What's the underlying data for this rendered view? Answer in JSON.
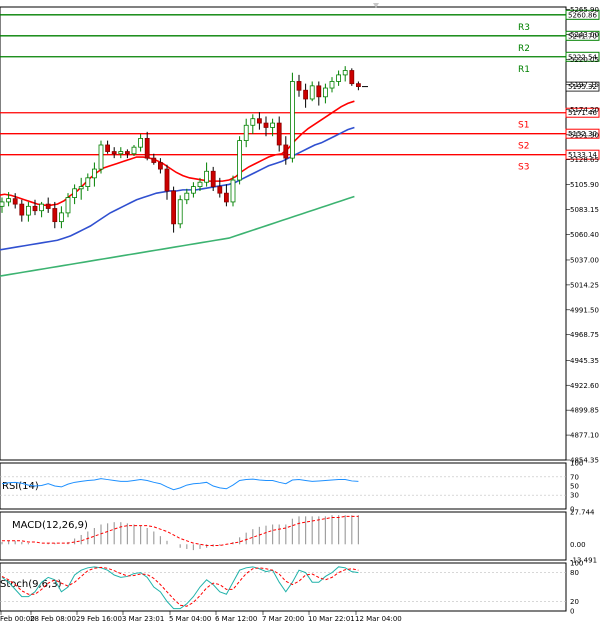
{
  "chart_data": {
    "type": "candlestick",
    "price_axis": {
      "ticks": [
        "5265.90",
        "5243.00",
        "5220.05",
        "5197.15",
        "5174.20",
        "5151.30",
        "5128.65",
        "5105.90",
        "5083.15",
        "5060.40",
        "5037.00",
        "5014.25",
        "4991.50",
        "4968.75",
        "4945.35",
        "4922.60",
        "4899.85",
        "4877.10",
        "4854.35"
      ],
      "range": [
        4854.35,
        5268
      ]
    },
    "x_labels": [
      "Feb 00:00",
      "28 Feb 08:00",
      "29 Feb 16:00",
      "3 Mar 23:01",
      "5 Mar 04:00",
      "6 Mar 12:00",
      "7 Mar 20:00",
      "10 Mar 22:01",
      "12 Mar 04:00"
    ],
    "levels": [
      {
        "name": "R3",
        "value": 5260.86,
        "label": "5260.86",
        "color": "#008000"
      },
      {
        "name": "R2",
        "value": 5241.7,
        "label": "5241.70",
        "color": "#008000"
      },
      {
        "name": "R1",
        "value": 5222.54,
        "label": "5222.54",
        "color": "#008000"
      },
      {
        "name": "S1",
        "value": 5171.46,
        "label": "5171.46",
        "color": "#ff0000"
      },
      {
        "name": "S2",
        "value": 5152.3,
        "label": "5152.30",
        "color": "#ff0000"
      },
      {
        "name": "S3",
        "value": 5133.14,
        "label": "5133.14",
        "color": "#ff0000"
      }
    ],
    "current_price": {
      "value": 5195.32,
      "label": "5195.32"
    },
    "candles": [
      [
        5086,
        5094,
        5080,
        5090
      ],
      [
        5090,
        5099,
        5086,
        5093
      ],
      [
        5093,
        5098,
        5084,
        5088
      ],
      [
        5088,
        5092,
        5072,
        5078
      ],
      [
        5078,
        5090,
        5072,
        5086
      ],
      [
        5086,
        5092,
        5078,
        5082
      ],
      [
        5082,
        5090,
        5076,
        5088
      ],
      [
        5088,
        5094,
        5080,
        5084
      ],
      [
        5084,
        5090,
        5066,
        5072
      ],
      [
        5072,
        5086,
        5066,
        5080
      ],
      [
        5080,
        5098,
        5076,
        5094
      ],
      [
        5094,
        5106,
        5088,
        5102
      ],
      [
        5102,
        5112,
        5092,
        5104
      ],
      [
        5104,
        5116,
        5100,
        5112
      ],
      [
        5112,
        5126,
        5104,
        5120
      ],
      [
        5120,
        5146,
        5116,
        5142
      ],
      [
        5142,
        5146,
        5134,
        5136
      ],
      [
        5136,
        5140,
        5130,
        5134
      ],
      [
        5134,
        5140,
        5130,
        5136
      ],
      [
        5136,
        5138,
        5130,
        5134
      ],
      [
        5134,
        5142,
        5132,
        5140
      ],
      [
        5140,
        5152,
        5136,
        5148
      ],
      [
        5148,
        5154,
        5128,
        5130
      ],
      [
        5130,
        5134,
        5124,
        5126
      ],
      [
        5126,
        5130,
        5116,
        5120
      ],
      [
        5120,
        5124,
        5092,
        5100
      ],
      [
        5100,
        5104,
        5062,
        5070
      ],
      [
        5070,
        5096,
        5066,
        5092
      ],
      [
        5092,
        5102,
        5088,
        5098
      ],
      [
        5098,
        5108,
        5094,
        5104
      ],
      [
        5104,
        5112,
        5100,
        5108
      ],
      [
        5108,
        5126,
        5104,
        5118
      ],
      [
        5118,
        5122,
        5100,
        5104
      ],
      [
        5104,
        5112,
        5094,
        5098
      ],
      [
        5098,
        5106,
        5086,
        5090
      ],
      [
        5090,
        5114,
        5086,
        5110
      ],
      [
        5110,
        5150,
        5106,
        5146
      ],
      [
        5146,
        5166,
        5140,
        5160
      ],
      [
        5160,
        5170,
        5152,
        5166
      ],
      [
        5166,
        5172,
        5156,
        5162
      ],
      [
        5162,
        5168,
        5150,
        5158
      ],
      [
        5158,
        5166,
        5150,
        5162
      ],
      [
        5162,
        5168,
        5136,
        5142
      ],
      [
        5142,
        5150,
        5124,
        5130
      ],
      [
        5130,
        5208,
        5126,
        5200
      ],
      [
        5200,
        5206,
        5186,
        5192
      ],
      [
        5192,
        5198,
        5176,
        5184
      ],
      [
        5184,
        5200,
        5182,
        5196
      ],
      [
        5196,
        5200,
        5178,
        5186
      ],
      [
        5186,
        5198,
        5180,
        5194
      ],
      [
        5194,
        5204,
        5190,
        5200
      ],
      [
        5200,
        5210,
        5196,
        5206
      ],
      [
        5206,
        5214,
        5200,
        5210
      ],
      [
        5210,
        5212,
        5196,
        5198
      ],
      [
        5198,
        5200,
        5192,
        5195.32
      ]
    ],
    "moving_averages": [
      {
        "color": "#ff0000",
        "values": [
          5096,
          5097,
          5096,
          5094,
          5092,
          5090,
          5088,
          5087,
          5087,
          5088,
          5091,
          5096,
          5100,
          5106,
          5112,
          5117,
          5121,
          5123,
          5125,
          5127,
          5129,
          5131,
          5131,
          5130,
          5128,
          5125,
          5121,
          5117,
          5114,
          5112,
          5111,
          5110,
          5109,
          5109,
          5109,
          5110,
          5113,
          5118,
          5122,
          5125,
          5128,
          5131,
          5133,
          5134,
          5139,
          5146,
          5152,
          5157,
          5161,
          5165,
          5169,
          5173,
          5177,
          5180,
          5182
        ]
      },
      {
        "color": "#3050d0",
        "values": [
          5046,
          5047,
          5048,
          5049,
          5050,
          5051,
          5052,
          5053,
          5054,
          5055,
          5057,
          5059,
          5062,
          5065,
          5068,
          5072,
          5076,
          5080,
          5083,
          5086,
          5089,
          5092,
          5094,
          5096,
          5098,
          5099,
          5100,
          5100,
          5101,
          5101,
          5101,
          5102,
          5103,
          5104,
          5105,
          5106,
          5108,
          5111,
          5114,
          5117,
          5120,
          5123,
          5125,
          5127,
          5130,
          5133,
          5136,
          5139,
          5142,
          5144,
          5147,
          5150,
          5153,
          5156,
          5158
        ]
      },
      {
        "color": "#3cb371",
        "values": [
          5022,
          5023,
          5024,
          5025,
          5026,
          5027,
          5028,
          5029,
          5030,
          5031,
          5032,
          5033,
          5034,
          5035,
          5036,
          5037,
          5038,
          5039,
          5040,
          5041,
          5042,
          5043,
          5044,
          5045,
          5046,
          5047,
          5048,
          5049,
          5050,
          5051,
          5052,
          5053,
          5054,
          5055,
          5056,
          5057,
          5059,
          5061,
          5063,
          5065,
          5067,
          5069,
          5071,
          5073,
          5075,
          5077,
          5079,
          5081,
          5083,
          5085,
          5087,
          5089,
          5091,
          5093,
          5095
        ]
      }
    ],
    "rsi": {
      "label": "RSI(14)",
      "ticks": [
        "100",
        "70",
        "50",
        "30",
        "0"
      ],
      "values": [
        55,
        57,
        58,
        56,
        52,
        50,
        51,
        55,
        50,
        48,
        54,
        58,
        60,
        62,
        63,
        66,
        64,
        62,
        60,
        60,
        62,
        64,
        62,
        58,
        55,
        48,
        42,
        46,
        52,
        55,
        56,
        58,
        50,
        46,
        44,
        52,
        62,
        64,
        65,
        63,
        62,
        62,
        58,
        55,
        63,
        64,
        62,
        60,
        61,
        62,
        63,
        64,
        64,
        61,
        60
      ]
    },
    "macd": {
      "label": "MACD(12,26,9)",
      "ticks": [
        "27.744",
        "0.00",
        "-13.491"
      ],
      "hist": [
        2,
        3,
        3,
        2,
        1,
        0,
        0,
        1,
        1,
        0,
        2,
        5,
        8,
        11,
        14,
        17,
        18,
        19,
        19,
        18,
        17,
        16,
        14,
        11,
        7,
        3,
        0,
        -3,
        -4,
        -5,
        -4,
        -3,
        -2,
        -1,
        0,
        2,
        6,
        10,
        13,
        15,
        16,
        17,
        17,
        17,
        22,
        24,
        24,
        24,
        24,
        24,
        25,
        25,
        25,
        25,
        25
      ],
      "signal": [
        3,
        3,
        3,
        3,
        2,
        2,
        1,
        1,
        1,
        1,
        1,
        2,
        3,
        5,
        7,
        9,
        11,
        13,
        15,
        16,
        16,
        16,
        16,
        15,
        13,
        11,
        8,
        5,
        3,
        1,
        0,
        -1,
        -1,
        -1,
        0,
        1,
        2,
        4,
        6,
        8,
        10,
        12,
        13,
        14,
        16,
        18,
        19,
        20,
        21,
        22,
        23,
        23,
        24,
        24,
        24
      ]
    },
    "stoch": {
      "label": "Stoch(9,6,3)",
      "ticks": [
        "100",
        "80",
        "20",
        "0"
      ],
      "k": [
        70,
        60,
        45,
        30,
        30,
        40,
        60,
        70,
        65,
        40,
        50,
        75,
        85,
        90,
        92,
        90,
        85,
        75,
        70,
        72,
        78,
        80,
        70,
        50,
        40,
        20,
        5,
        5,
        15,
        30,
        50,
        65,
        55,
        40,
        35,
        60,
        85,
        90,
        92,
        88,
        82,
        85,
        60,
        40,
        60,
        85,
        80,
        60,
        60,
        72,
        80,
        92,
        90,
        82,
        80
      ],
      "d": [
        72,
        65,
        55,
        42,
        35,
        35,
        45,
        58,
        65,
        58,
        52,
        60,
        72,
        84,
        89,
        91,
        89,
        84,
        78,
        73,
        74,
        77,
        76,
        68,
        55,
        40,
        25,
        12,
        10,
        18,
        32,
        48,
        58,
        55,
        45,
        45,
        62,
        78,
        88,
        90,
        88,
        85,
        77,
        62,
        55,
        62,
        75,
        77,
        70,
        65,
        70,
        80,
        86,
        88,
        85
      ]
    }
  }
}
